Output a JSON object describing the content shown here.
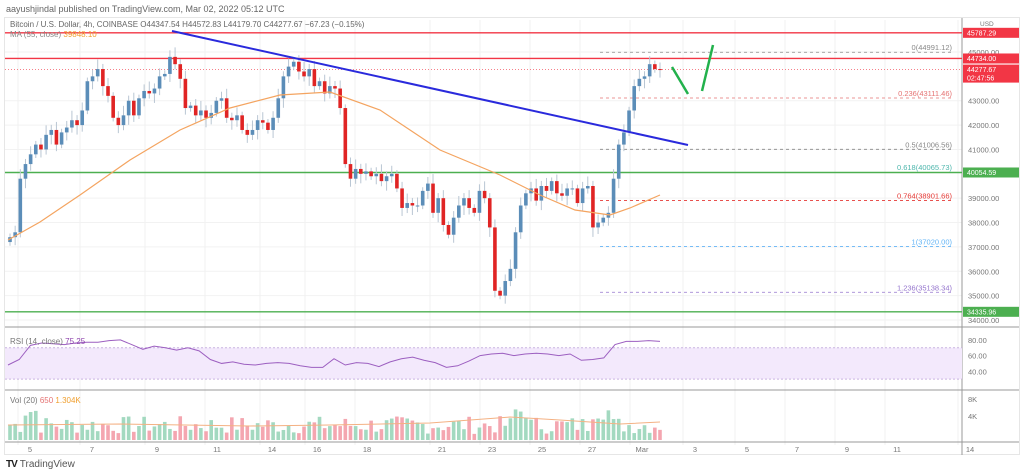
{
  "header": {
    "publisher": "aayushjindal published on TradingView.com, Mar 02, 2022 05:12 UTC",
    "symbol_line": "Bitcoin / U.S. Dollar, 4h, COINBASE  O44347.54  H44572.83  L44179.70  C44277.67  −67.23 (−0.15%)",
    "ma_label": "MA (55, close)",
    "ma_value": "39848.10"
  },
  "price_axis": {
    "currency": "USD",
    "ticks": [
      "45000.00",
      "43000.00",
      "42000.00",
      "41000.00",
      "39000.00",
      "38000.00",
      "37000.00",
      "36000.00",
      "35000.00",
      "34000.00"
    ],
    "badges": [
      {
        "label": "45787.29",
        "color": "#f23645"
      },
      {
        "label": "44734.00",
        "color": "#f23645"
      },
      {
        "label": "44277.67",
        "sub": "02:47:56",
        "color": "#f23645"
      },
      {
        "label": "40054.59",
        "color": "#4caf50"
      },
      {
        "label": "34335.96",
        "color": "#4caf50"
      }
    ]
  },
  "fib_levels": [
    {
      "label": "0(44991.12)",
      "color": "#888888"
    },
    {
      "label": "0.236(43111.46)",
      "color": "#e57373"
    },
    {
      "label": "0.5(41006.56)",
      "color": "#888888"
    },
    {
      "label": "0.618(40065.73)",
      "color": "#4db6ac"
    },
    {
      "label": "0.764(38901.66)",
      "color": "#e53935"
    },
    {
      "label": "1(37020.00)",
      "color": "#64b5f6"
    },
    {
      "label": "1.236(35138.34)",
      "color": "#9575cd"
    }
  ],
  "rsi": {
    "label": "RSI (14, close)",
    "value": "75.25",
    "ticks": [
      "80.00",
      "60.00",
      "40.00"
    ]
  },
  "volume": {
    "label": "Vol (20)",
    "value1": "650",
    "value2": "1.304K",
    "ticks": [
      "8K",
      "4K"
    ]
  },
  "time_axis": {
    "labels": [
      "5",
      "7",
      "9",
      "11",
      "14",
      "16",
      "18",
      "21",
      "23",
      "25",
      "27",
      "Mar",
      "3",
      "5",
      "7",
      "9",
      "11",
      "14"
    ]
  },
  "footer": {
    "brand": "TradingView"
  },
  "chart_data": {
    "type": "candlestick",
    "title": "Bitcoin / U.S. Dollar, 4h, COINBASE",
    "ylabel": "USD",
    "ylim": [
      34000,
      46000
    ],
    "ohlc_last": {
      "open": 44347.54,
      "high": 44572.83,
      "low": 44179.7,
      "close": 44277.67,
      "change": -67.23,
      "change_pct": -0.15
    },
    "horizontal_levels": {
      "resistance_red": [
        45787.29,
        44734.0
      ],
      "support_green": [
        40054.59,
        34335.96
      ]
    },
    "fibonacci": [
      {
        "ratio": 0,
        "price": 44991.12
      },
      {
        "ratio": 0.236,
        "price": 43111.46
      },
      {
        "ratio": 0.5,
        "price": 41006.56
      },
      {
        "ratio": 0.618,
        "price": 40065.73
      },
      {
        "ratio": 0.764,
        "price": 38901.66
      },
      {
        "ratio": 1,
        "price": 37020.0
      },
      {
        "ratio": 1.236,
        "price": 35138.34
      }
    ],
    "trendline": {
      "from": {
        "date": "Feb 10",
        "price": 45800
      },
      "to": {
        "date": "Mar 1",
        "price": 41300
      },
      "color": "#2a2adc"
    },
    "ma55_last": 39848.1,
    "rsi_last": 75.25,
    "rsi_levels": [
      80,
      60,
      40
    ],
    "volume_last": 650,
    "volume_ma": 1304,
    "x_labels": [
      "5",
      "7",
      "9",
      "11",
      "14",
      "16",
      "18",
      "21",
      "23",
      "25",
      "27",
      "Mar",
      "3",
      "5",
      "7",
      "9",
      "11",
      "14"
    ]
  }
}
